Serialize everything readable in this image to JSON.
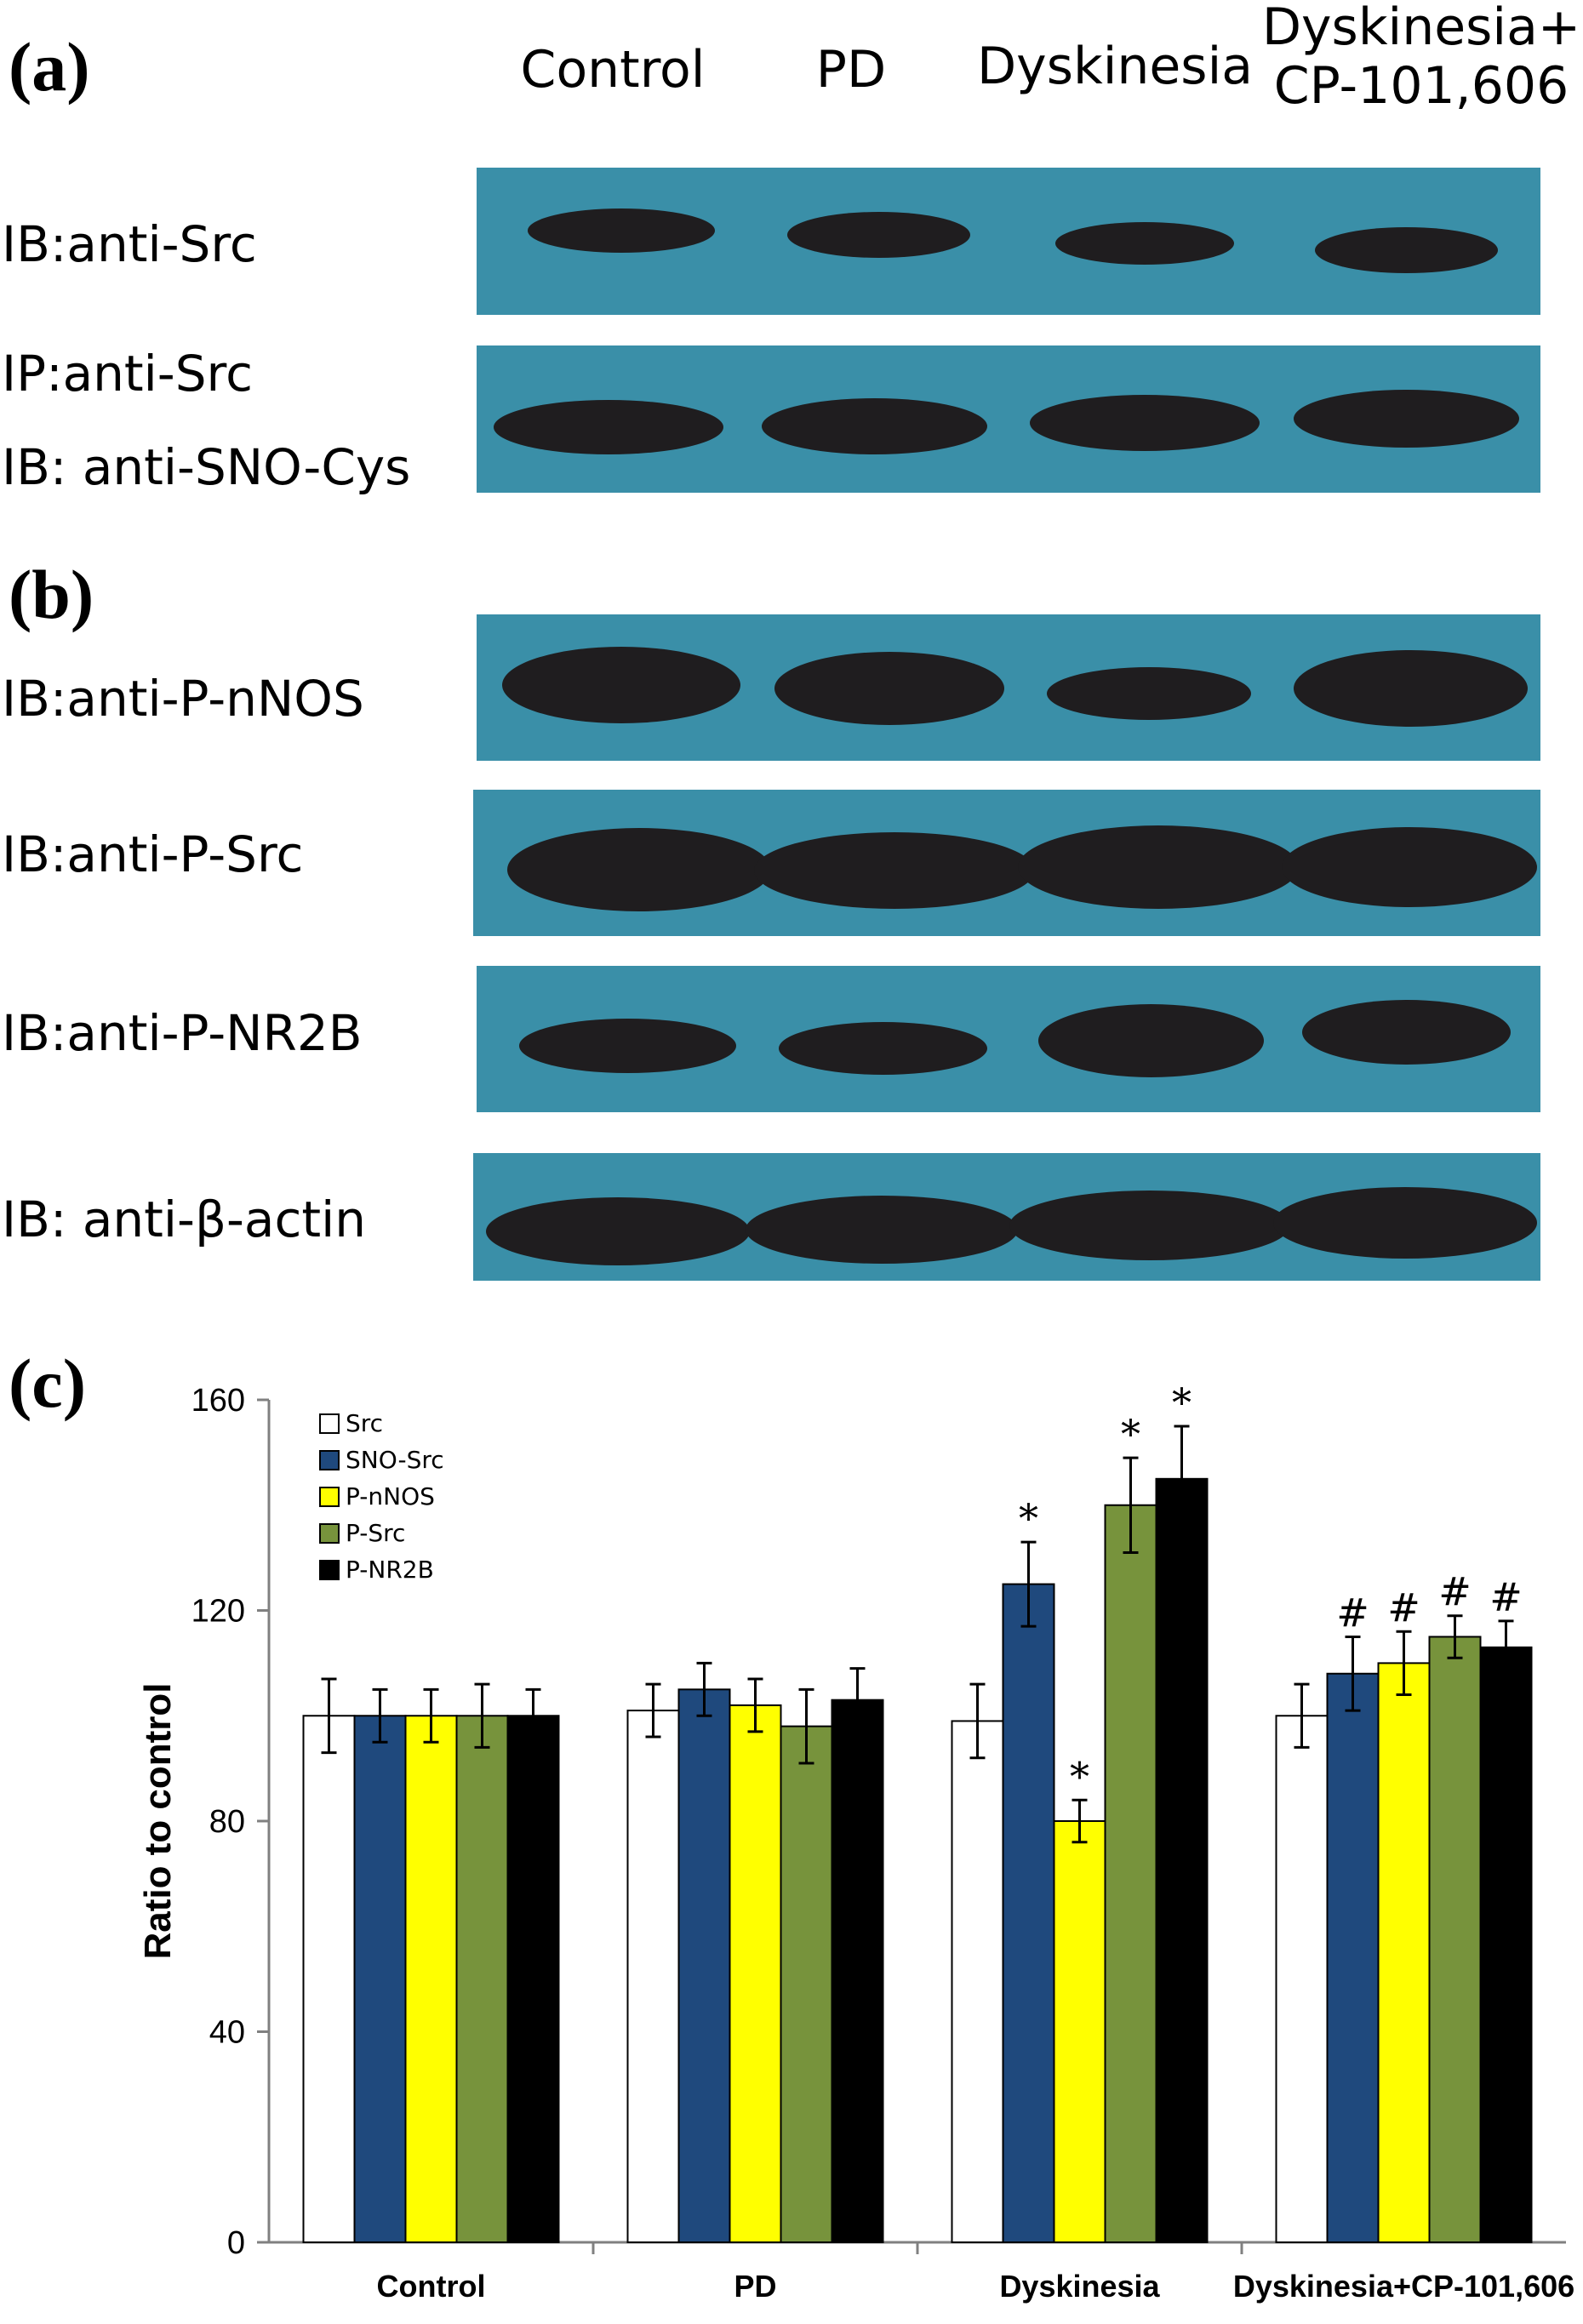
{
  "panels": {
    "a": "(a)",
    "b": "(b)",
    "c": "(c)"
  },
  "lanes": {
    "control": "Control",
    "pd": "PD",
    "dyskinesia": "Dyskinesia",
    "combo_line1": "Dyskinesia+",
    "combo_line2": "CP-101,606"
  },
  "blot_rows": {
    "src": "IB:anti-Src",
    "ip_src": "IP:anti-Src",
    "sno_cys": "IB: anti-SNO-Cys",
    "p_nnos": "IB:anti-P-nNOS",
    "p_src": "IB:anti-P-Src",
    "p_nr2b": "IB:anti-P-NR2B",
    "actin": "IB: anti-β-actin"
  },
  "colors": {
    "blot_background": "#3a8fa8",
    "band": "#1f1d1f",
    "Src": "#ffffff",
    "SNO-Src": "#1f497d",
    "P-nNOS": "#ffff00",
    "P-Src": "#77933c",
    "P-NR2B": "#000000"
  },
  "chart_data": {
    "type": "bar",
    "title": "",
    "xlabel": "",
    "ylabel": "Ratio to control",
    "ylim": [
      0,
      160
    ],
    "yticks": [
      0,
      40,
      80,
      120,
      160
    ],
    "grid": false,
    "legend_position": "top-left",
    "categories": [
      "Control",
      "PD",
      "Dyskinesia",
      "Dyskinesia+CP-101,606"
    ],
    "series": [
      {
        "name": "Src",
        "values": [
          100,
          101,
          99,
          100
        ],
        "errors": [
          7,
          5,
          7,
          6
        ],
        "markers": [
          "",
          "",
          "",
          ""
        ]
      },
      {
        "name": "SNO-Src",
        "values": [
          100,
          105,
          125,
          108
        ],
        "errors": [
          5,
          5,
          8,
          7
        ],
        "markers": [
          "",
          "",
          "*",
          "#"
        ]
      },
      {
        "name": "P-nNOS",
        "values": [
          100,
          102,
          80,
          110
        ],
        "errors": [
          5,
          5,
          4,
          6
        ],
        "markers": [
          "",
          "",
          "*",
          "#"
        ]
      },
      {
        "name": "P-Src",
        "values": [
          100,
          98,
          140,
          115
        ],
        "errors": [
          6,
          7,
          9,
          4
        ],
        "markers": [
          "",
          "",
          "*",
          "#"
        ]
      },
      {
        "name": "P-NR2B",
        "values": [
          100,
          103,
          145,
          113
        ],
        "errors": [
          5,
          6,
          10,
          5
        ],
        "markers": [
          "",
          "",
          "*",
          "#"
        ]
      }
    ]
  }
}
